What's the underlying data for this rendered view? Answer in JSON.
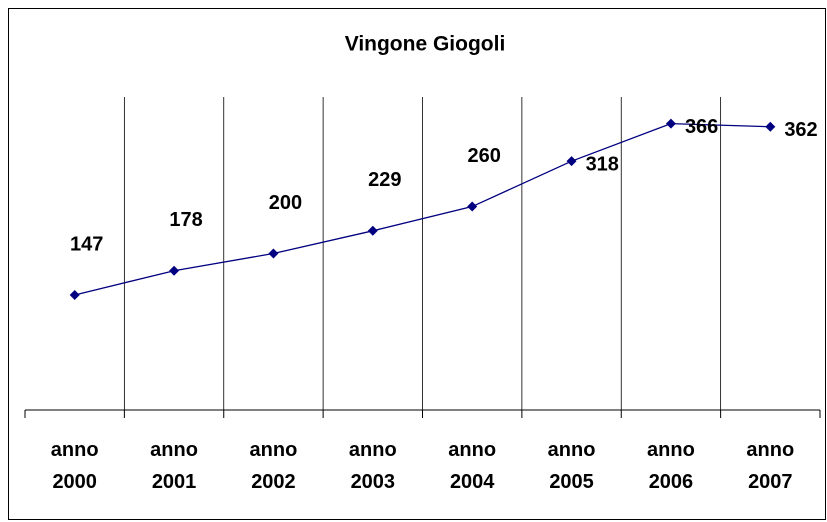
{
  "chart_data": {
    "type": "line",
    "title": "Vingone Giogoli",
    "categories": [
      "anno 2000",
      "anno 2001",
      "anno 2002",
      "anno 2003",
      "anno 2004",
      "anno 2005",
      "anno 2006",
      "anno 2007"
    ],
    "series": [
      {
        "name": "Vingone Giogoli",
        "color": "#000080",
        "values": [
          147,
          178,
          200,
          229,
          260,
          318,
          366,
          362
        ]
      }
    ],
    "ylim": [
      0,
      400
    ],
    "grid": true
  }
}
